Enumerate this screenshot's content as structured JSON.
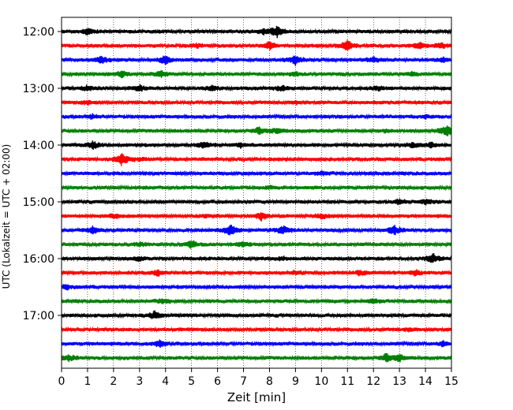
{
  "chart_data": {
    "type": "line",
    "title": "",
    "xlabel": "Zeit  [min]",
    "ylabel": "UTC (Lokalzeit = UTC + 02:00)",
    "xlim": [
      0,
      15
    ],
    "x_ticks": [
      "0",
      "1",
      "2",
      "3",
      "4",
      "5",
      "6",
      "7",
      "8",
      "9",
      "10",
      "11",
      "12",
      "13",
      "14",
      "15"
    ],
    "y_tick_labels": [
      "12:00",
      "13:00",
      "14:00",
      "15:00",
      "16:00",
      "17:00"
    ],
    "grid": "vertical dotted",
    "trace_interval_min": 15,
    "traces": [
      {
        "start": "12:00",
        "color": "#000000",
        "bursts": [
          [
            1.0,
            0.5
          ],
          [
            8.3,
            1.0
          ],
          [
            7.8,
            0.4
          ]
        ]
      },
      {
        "start": "12:15",
        "color": "#ff0000",
        "bursts": [
          [
            8.0,
            0.6
          ],
          [
            11.0,
            0.9
          ],
          [
            13.8,
            0.5
          ],
          [
            14.6,
            0.4
          ],
          [
            5.2,
            0.3
          ]
        ]
      },
      {
        "start": "12:30",
        "color": "#0000ff",
        "bursts": [
          [
            1.5,
            0.6
          ],
          [
            4.0,
            0.7
          ],
          [
            9.0,
            0.8
          ],
          [
            12.0,
            0.4
          ],
          [
            14.7,
            0.4
          ]
        ]
      },
      {
        "start": "12:45",
        "color": "#008000",
        "bursts": [
          [
            2.3,
            0.5
          ],
          [
            3.8,
            0.5
          ],
          [
            9.0,
            0.3
          ],
          [
            13.5,
            0.3
          ]
        ]
      },
      {
        "start": "13:00",
        "color": "#000000",
        "bursts": [
          [
            1.0,
            0.4
          ],
          [
            3.0,
            0.5
          ],
          [
            5.8,
            0.4
          ],
          [
            8.5,
            0.4
          ],
          [
            12.2,
            0.3
          ]
        ]
      },
      {
        "start": "13:15",
        "color": "#ff0000",
        "bursts": [
          [
            1.0,
            0.3
          ],
          [
            9.0,
            0.2
          ]
        ]
      },
      {
        "start": "13:30",
        "color": "#0000ff",
        "bursts": [
          [
            1.2,
            0.3
          ],
          [
            14.0,
            0.2
          ]
        ]
      },
      {
        "start": "13:45",
        "color": "#008000",
        "bursts": [
          [
            7.6,
            0.6
          ],
          [
            8.3,
            0.4
          ],
          [
            14.8,
            1.0
          ],
          [
            12.5,
            0.2
          ]
        ]
      },
      {
        "start": "14:00",
        "color": "#000000",
        "bursts": [
          [
            1.2,
            0.6
          ],
          [
            5.5,
            0.5
          ],
          [
            6.9,
            0.3
          ],
          [
            13.5,
            0.4
          ],
          [
            14.2,
            0.4
          ]
        ]
      },
      {
        "start": "14:15",
        "color": "#ff0000",
        "bursts": [
          [
            2.3,
            1.0
          ],
          [
            3.0,
            0.2
          ]
        ]
      },
      {
        "start": "14:30",
        "color": "#0000ff",
        "bursts": [
          [
            10.0,
            0.3
          ]
        ]
      },
      {
        "start": "14:45",
        "color": "#008000",
        "bursts": [
          [
            8.0,
            0.15
          ]
        ]
      },
      {
        "start": "15:00",
        "color": "#000000",
        "bursts": [
          [
            13.0,
            0.4
          ],
          [
            14.0,
            0.4
          ]
        ]
      },
      {
        "start": "15:15",
        "color": "#ff0000",
        "bursts": [
          [
            7.7,
            0.7
          ],
          [
            10.0,
            0.4
          ],
          [
            2.0,
            0.3
          ],
          [
            5.5,
            0.2
          ]
        ]
      },
      {
        "start": "15:30",
        "color": "#0000ff",
        "bursts": [
          [
            1.2,
            0.5
          ],
          [
            6.5,
            0.9
          ],
          [
            8.5,
            0.7
          ],
          [
            12.8,
            0.8
          ]
        ]
      },
      {
        "start": "15:45",
        "color": "#008000",
        "bursts": [
          [
            5.0,
            0.7
          ],
          [
            7.0,
            0.4
          ],
          [
            3.0,
            0.3
          ]
        ]
      },
      {
        "start": "16:00",
        "color": "#000000",
        "bursts": [
          [
            14.3,
            0.8
          ],
          [
            3.0,
            0.3
          ],
          [
            8.5,
            0.2
          ]
        ]
      },
      {
        "start": "16:15",
        "color": "#ff0000",
        "bursts": [
          [
            3.7,
            0.5
          ],
          [
            9.0,
            0.3
          ],
          [
            11.5,
            0.4
          ],
          [
            13.6,
            0.4
          ]
        ]
      },
      {
        "start": "16:30",
        "color": "#0000ff",
        "bursts": [
          [
            0.2,
            0.4
          ]
        ]
      },
      {
        "start": "16:45",
        "color": "#008000",
        "bursts": [
          [
            3.9,
            0.4
          ],
          [
            12.0,
            0.3
          ]
        ]
      },
      {
        "start": "17:00",
        "color": "#000000",
        "bursts": [
          [
            3.6,
            0.6
          ]
        ]
      },
      {
        "start": "17:15",
        "color": "#ff0000",
        "bursts": [
          [
            13.4,
            0.3
          ]
        ]
      },
      {
        "start": "17:30",
        "color": "#0000ff",
        "bursts": [
          [
            3.8,
            0.5
          ],
          [
            14.7,
            0.4
          ]
        ]
      },
      {
        "start": "17:45",
        "color": "#008000",
        "bursts": [
          [
            0.3,
            0.5
          ],
          [
            12.5,
            0.7
          ],
          [
            13.0,
            0.5
          ]
        ]
      }
    ]
  }
}
